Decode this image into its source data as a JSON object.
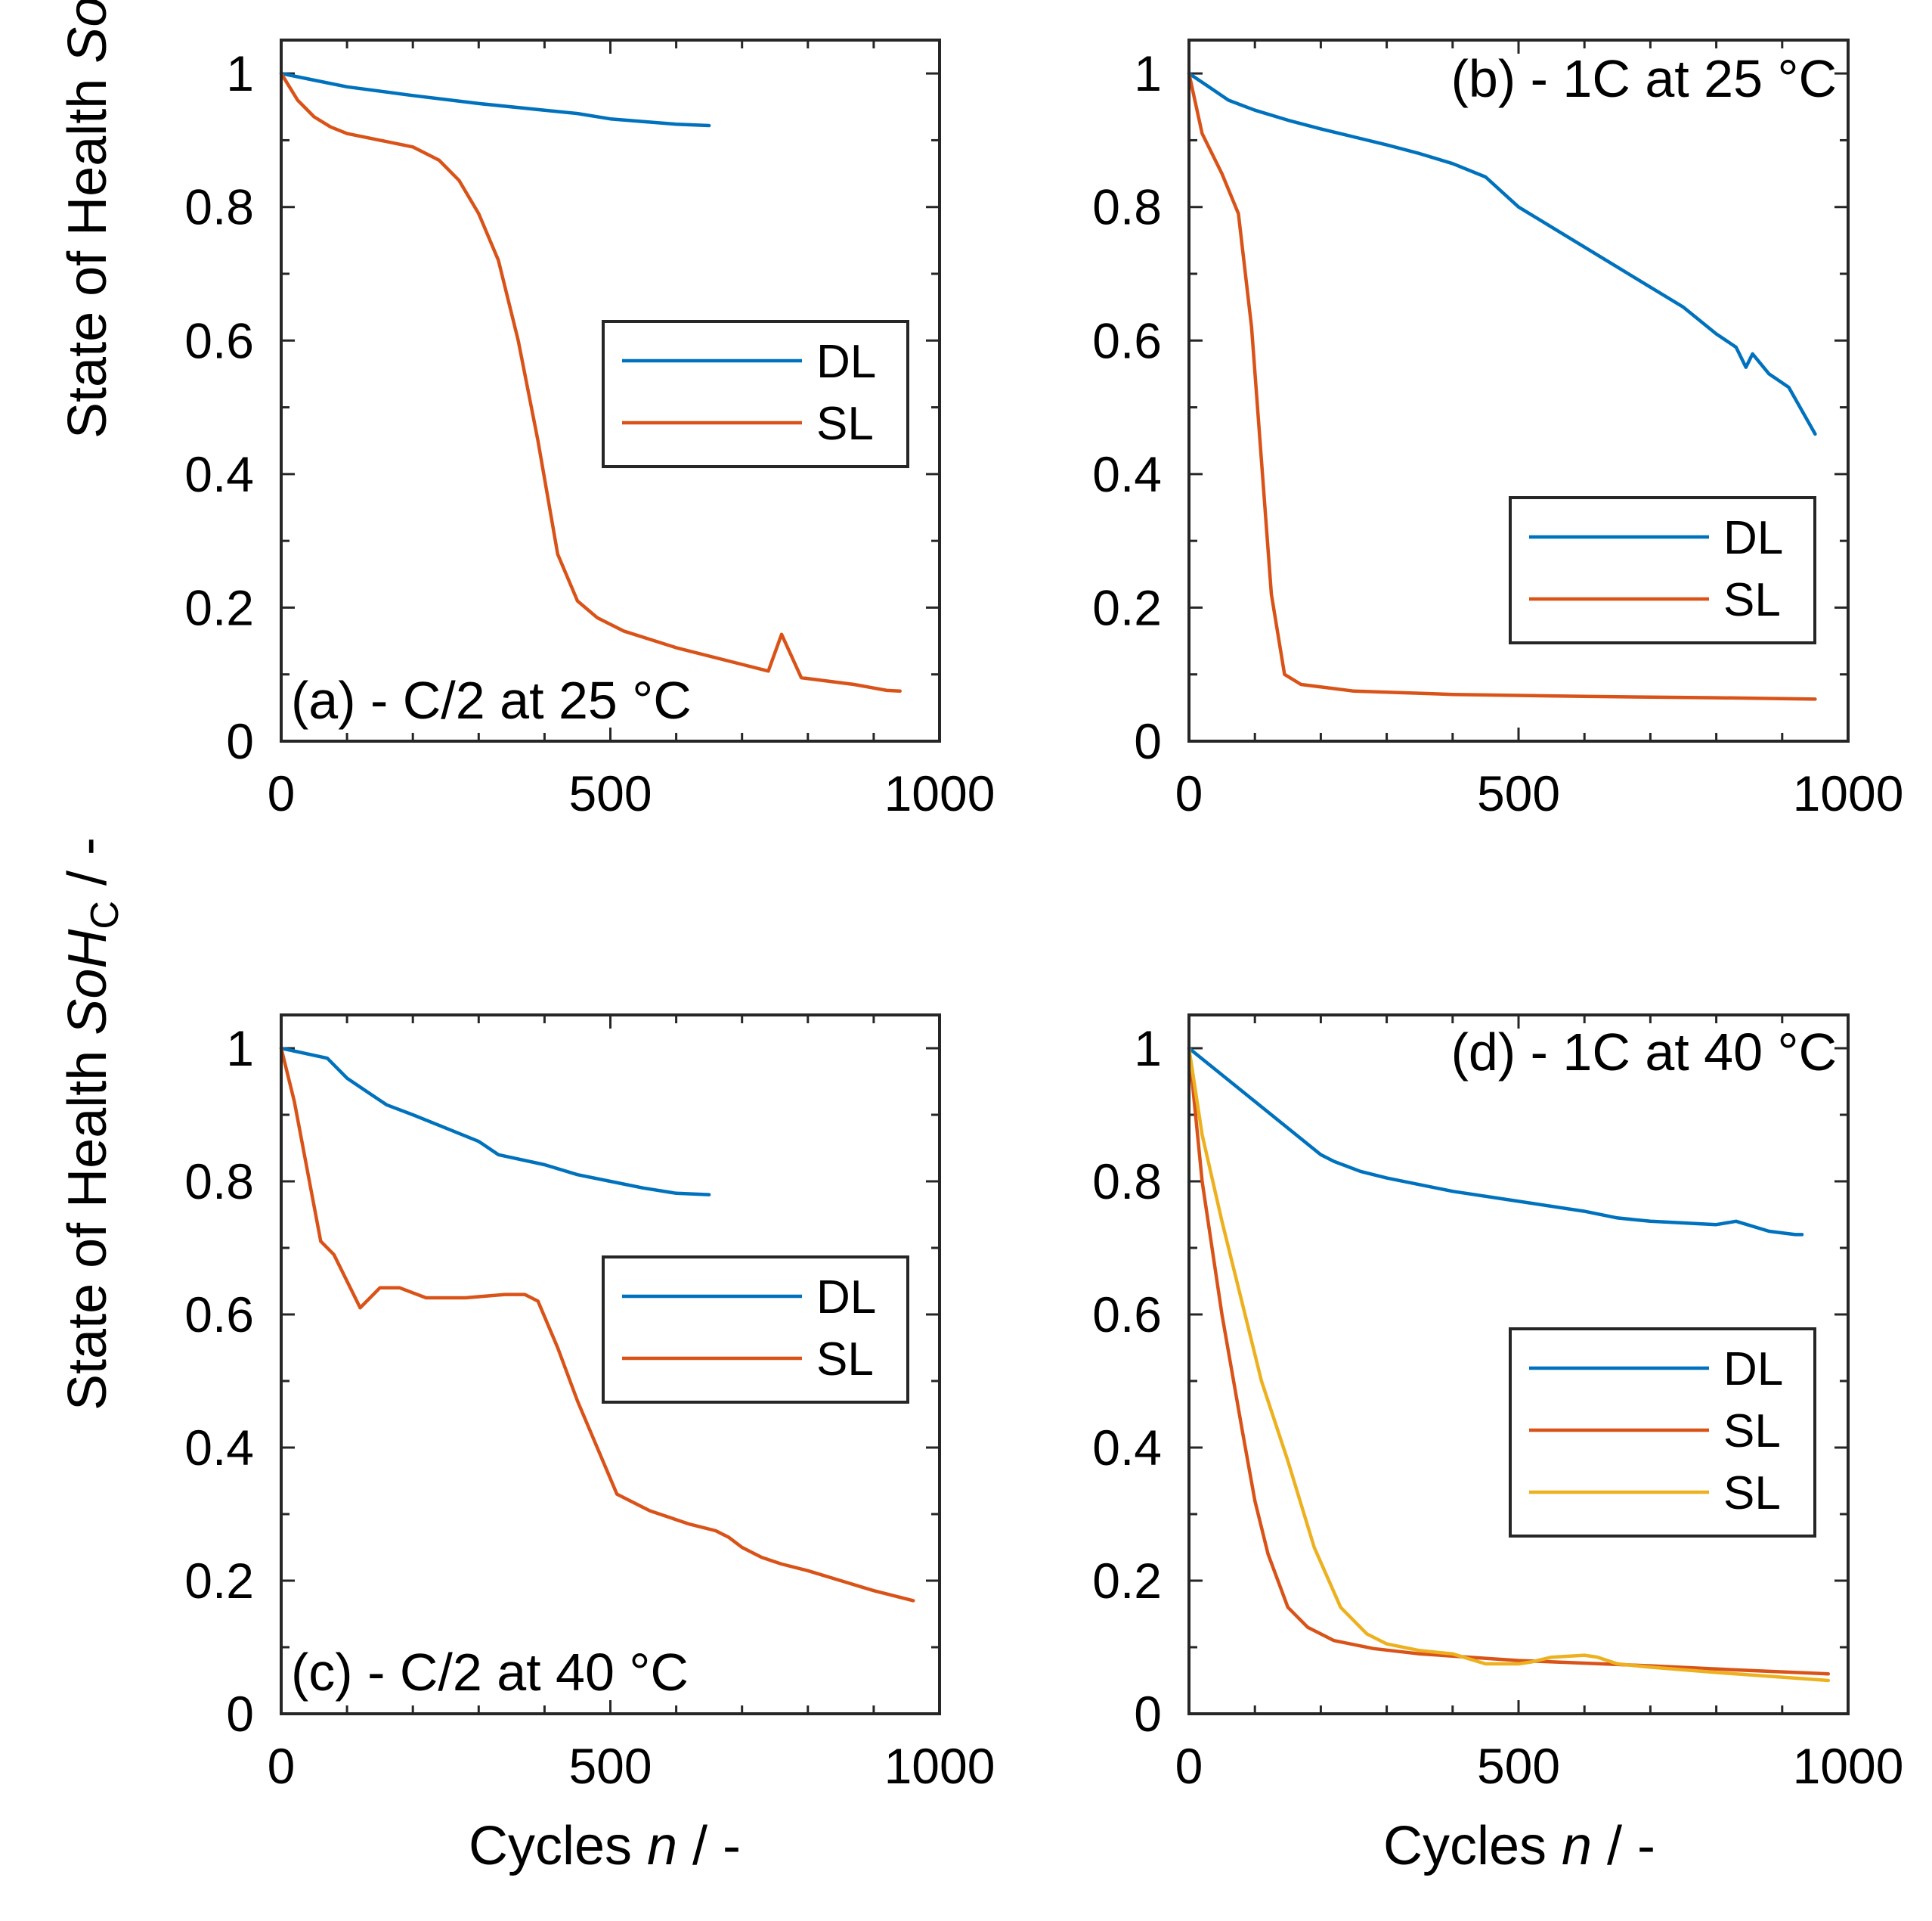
{
  "figure": {
    "ylabel_parts": [
      "State of Health ",
      "SoH",
      "C",
      " / -"
    ],
    "xlabel_parts": [
      "Cycles ",
      "n",
      " / -"
    ]
  },
  "chart_data": [
    {
      "type": "line",
      "panel_label": "(a) - C/2 at 25 °C",
      "xlim": [
        0,
        1000
      ],
      "ylim": [
        0,
        1.05
      ],
      "xticks": [
        0,
        500,
        1000
      ],
      "yticks": [
        0,
        0.2,
        0.4,
        0.6,
        0.8,
        1
      ],
      "ytick_labels": [
        "0",
        "0.2",
        "0.4",
        "0.6",
        "0.8",
        "1"
      ],
      "legend_position": "center-right",
      "series": [
        {
          "name": "DL",
          "color": "#0072BD",
          "x": [
            0,
            50,
            100,
            200,
            300,
            400,
            450,
            500,
            550,
            600,
            650
          ],
          "y": [
            1.0,
            0.99,
            0.98,
            0.967,
            0.955,
            0.945,
            0.94,
            0.932,
            0.928,
            0.924,
            0.922
          ]
        },
        {
          "name": "SL",
          "color": "#D95319",
          "x": [
            0,
            25,
            50,
            75,
            100,
            150,
            200,
            240,
            270,
            300,
            330,
            360,
            390,
            420,
            450,
            480,
            520,
            600,
            700,
            740,
            760,
            790,
            870,
            920,
            940
          ],
          "y": [
            1.0,
            0.96,
            0.935,
            0.92,
            0.91,
            0.9,
            0.89,
            0.87,
            0.84,
            0.79,
            0.72,
            0.6,
            0.45,
            0.28,
            0.21,
            0.185,
            0.165,
            0.14,
            0.115,
            0.105,
            0.16,
            0.095,
            0.085,
            0.076,
            0.075
          ]
        }
      ]
    },
    {
      "type": "line",
      "panel_label": "(b) - 1C at 25 °C",
      "xlim": [
        0,
        1000
      ],
      "ylim": [
        0,
        1.05
      ],
      "xticks": [
        0,
        500,
        1000
      ],
      "yticks": [
        0,
        0.2,
        0.4,
        0.6,
        0.8,
        1
      ],
      "ytick_labels": [
        "0",
        "0.2",
        "0.4",
        "0.6",
        "0.8",
        "1"
      ],
      "legend_position": "lower-right",
      "series": [
        {
          "name": "DL",
          "color": "#0072BD",
          "x": [
            0,
            30,
            60,
            100,
            150,
            200,
            250,
            300,
            350,
            400,
            450,
            500,
            550,
            600,
            650,
            700,
            750,
            800,
            830,
            845,
            855,
            880,
            910,
            950
          ],
          "y": [
            1.0,
            0.98,
            0.96,
            0.945,
            0.93,
            0.917,
            0.905,
            0.893,
            0.88,
            0.865,
            0.845,
            0.8,
            0.77,
            0.74,
            0.71,
            0.68,
            0.65,
            0.61,
            0.59,
            0.56,
            0.58,
            0.55,
            0.53,
            0.46
          ]
        },
        {
          "name": "SL",
          "color": "#D95319",
          "x": [
            0,
            20,
            50,
            75,
            95,
            110,
            125,
            145,
            170,
            250,
            400,
            600,
            800,
            950
          ],
          "y": [
            1.0,
            0.91,
            0.85,
            0.79,
            0.62,
            0.42,
            0.22,
            0.1,
            0.085,
            0.075,
            0.07,
            0.067,
            0.065,
            0.063
          ]
        }
      ]
    },
    {
      "type": "line",
      "panel_label": "(c) - C/2 at 40 °C",
      "xlim": [
        0,
        1000
      ],
      "ylim": [
        0,
        1.05
      ],
      "xticks": [
        0,
        500,
        1000
      ],
      "yticks": [
        0,
        0.2,
        0.4,
        0.6,
        0.8,
        1
      ],
      "ytick_labels": [
        "0",
        "0.2",
        "0.4",
        "0.6",
        "0.8",
        "1"
      ],
      "legend_position": "center-right",
      "series": [
        {
          "name": "DL",
          "color": "#0072BD",
          "x": [
            0,
            70,
            100,
            130,
            160,
            200,
            250,
            300,
            330,
            400,
            450,
            500,
            550,
            600,
            650
          ],
          "y": [
            1.0,
            0.985,
            0.955,
            0.935,
            0.915,
            0.9,
            0.88,
            0.86,
            0.84,
            0.825,
            0.81,
            0.8,
            0.79,
            0.782,
            0.78
          ]
        },
        {
          "name": "SL",
          "color": "#D95319",
          "x": [
            0,
            20,
            60,
            80,
            120,
            150,
            180,
            220,
            280,
            340,
            370,
            390,
            420,
            450,
            480,
            510,
            560,
            620,
            660,
            680,
            700,
            730,
            760,
            800,
            850,
            900,
            960
          ],
          "y": [
            1.0,
            0.92,
            0.71,
            0.69,
            0.61,
            0.64,
            0.64,
            0.625,
            0.625,
            0.63,
            0.63,
            0.62,
            0.55,
            0.47,
            0.4,
            0.33,
            0.305,
            0.285,
            0.275,
            0.265,
            0.25,
            0.235,
            0.225,
            0.215,
            0.2,
            0.185,
            0.17
          ]
        }
      ]
    },
    {
      "type": "line",
      "panel_label": "(d) - 1C at 40 °C",
      "xlim": [
        0,
        1000
      ],
      "ylim": [
        0,
        1.05
      ],
      "xticks": [
        0,
        500,
        1000
      ],
      "yticks": [
        0,
        0.2,
        0.4,
        0.6,
        0.8,
        1
      ],
      "ytick_labels": [
        "0",
        "0.2",
        "0.4",
        "0.6",
        "0.8",
        "1"
      ],
      "legend_position": "center-right",
      "series": [
        {
          "name": "DL",
          "color": "#0072BD",
          "x": [
            0,
            100,
            200,
            220,
            260,
            300,
            400,
            500,
            600,
            650,
            700,
            800,
            830,
            880,
            920,
            930
          ],
          "y": [
            1.0,
            0.92,
            0.84,
            0.83,
            0.815,
            0.805,
            0.785,
            0.77,
            0.755,
            0.745,
            0.74,
            0.735,
            0.74,
            0.725,
            0.72,
            0.72
          ]
        },
        {
          "name": "SL",
          "color": "#D95319",
          "x": [
            0,
            20,
            50,
            80,
            100,
            120,
            150,
            180,
            220,
            280,
            350,
            500,
            700,
            850,
            970
          ],
          "y": [
            1.0,
            0.8,
            0.6,
            0.43,
            0.32,
            0.24,
            0.16,
            0.13,
            0.11,
            0.098,
            0.09,
            0.08,
            0.072,
            0.065,
            0.06
          ]
        },
        {
          "name": "SL",
          "color": "#EDB120",
          "x": [
            0,
            20,
            50,
            80,
            110,
            150,
            190,
            230,
            270,
            300,
            350,
            400,
            450,
            500,
            520,
            550,
            600,
            620,
            650,
            700,
            800,
            900,
            970
          ],
          "y": [
            1.0,
            0.87,
            0.74,
            0.62,
            0.5,
            0.38,
            0.25,
            0.16,
            0.12,
            0.105,
            0.095,
            0.09,
            0.075,
            0.075,
            0.078,
            0.085,
            0.088,
            0.085,
            0.075,
            0.07,
            0.062,
            0.055,
            0.05
          ]
        }
      ]
    }
  ]
}
